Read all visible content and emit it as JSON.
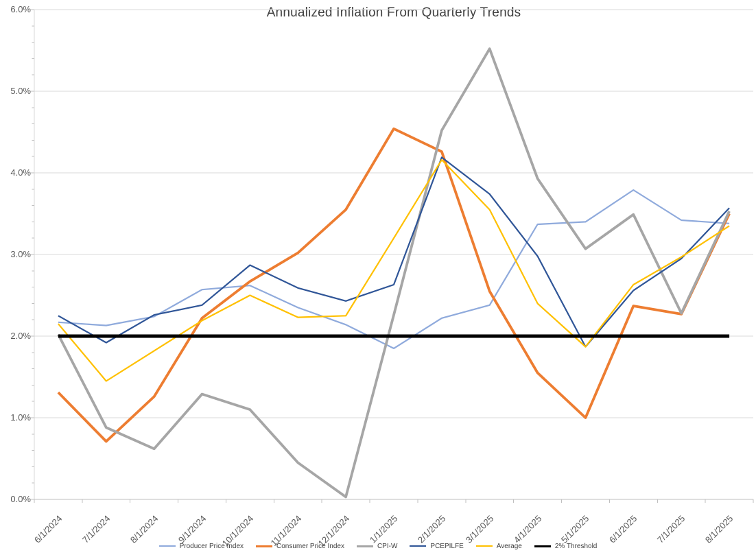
{
  "title": "Annualized Inflation From Quarterly Trends",
  "chart_data": {
    "type": "line",
    "x": [
      "6/1/2024",
      "7/1/2024",
      "8/1/2024",
      "9/1/2024",
      "10/1/2024",
      "11/1/2024",
      "12/1/2024",
      "1/1/2025",
      "2/1/2025",
      "3/1/2025",
      "4/1/2025",
      "5/1/2025",
      "6/1/2025",
      "7/1/2025",
      "8/1/2025"
    ],
    "series": [
      {
        "name": "Producer Price Index",
        "color": "#8FAADC",
        "width": 2.2,
        "values": [
          2.17,
          2.13,
          2.24,
          2.57,
          2.62,
          2.35,
          2.14,
          1.85,
          2.22,
          2.38,
          3.37,
          3.4,
          3.79,
          3.42,
          3.38
        ]
      },
      {
        "name": "Consumer Price Index",
        "color": "#ED7D31",
        "width": 3.8,
        "values": [
          1.31,
          0.71,
          1.26,
          2.22,
          2.67,
          3.02,
          3.55,
          4.54,
          4.26,
          2.55,
          1.55,
          1.0,
          2.37,
          2.27,
          3.5
        ]
      },
      {
        "name": "CPI-W",
        "color": "#A6A6A6",
        "width": 3.8,
        "values": [
          2.02,
          0.88,
          0.62,
          1.29,
          1.1,
          0.45,
          0.03,
          2.26,
          4.52,
          5.52,
          3.93,
          3.07,
          3.49,
          2.28,
          3.53
        ]
      },
      {
        "name": "PCEPILFE",
        "color": "#2F5597",
        "width": 2.2,
        "values": [
          2.25,
          1.92,
          2.26,
          2.38,
          2.87,
          2.59,
          2.43,
          2.63,
          4.19,
          3.74,
          2.98,
          1.87,
          2.56,
          2.95,
          3.57
        ]
      },
      {
        "name": "Average",
        "color": "#FFC000",
        "width": 2.2,
        "values": [
          2.15,
          1.45,
          1.82,
          2.19,
          2.5,
          2.23,
          2.25,
          3.2,
          4.16,
          3.55,
          2.4,
          1.87,
          2.63,
          2.97,
          3.35
        ]
      },
      {
        "name": "2% Threshold",
        "color": "#000000",
        "width": 5,
        "values": [
          2.0,
          2.0,
          2.0,
          2.0,
          2.0,
          2.0,
          2.0,
          2.0,
          2.0,
          2.0,
          2.0,
          2.0,
          2.0,
          2.0,
          2.0
        ]
      }
    ],
    "ylim": [
      0.0,
      6.0
    ],
    "ytick_step": 1.0,
    "ytick_labels": [
      "0.0%",
      "1.0%",
      "2.0%",
      "3.0%",
      "4.0%",
      "5.0%",
      "6.0%"
    ],
    "grid": "horizontal-major",
    "legend_position": "bottom"
  }
}
